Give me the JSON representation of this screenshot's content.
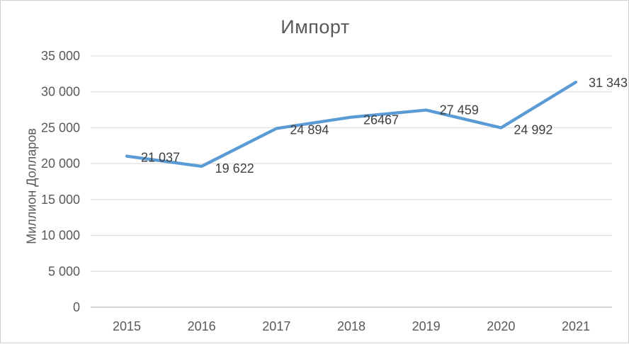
{
  "chart_data": {
    "type": "line",
    "title": "Импорт",
    "xlabel": "",
    "ylabel": "Миллион Долларов",
    "categories": [
      "2015",
      "2016",
      "2017",
      "2018",
      "2019",
      "2020",
      "2021"
    ],
    "series": [
      {
        "name": "Импорт",
        "values": [
          21037,
          19622,
          24894,
          26467,
          27459,
          24992,
          31343
        ],
        "data_labels": [
          "21 037",
          "19 622",
          "24 894",
          "26467",
          "27 459",
          "24 992",
          "31 343"
        ]
      }
    ],
    "ylim": [
      0,
      35000
    ],
    "y_tick_labels": [
      "0",
      "5 000",
      "10 000",
      "15 000",
      "20 000",
      "25 000",
      "30 000",
      "35 000"
    ],
    "y_tick_values": [
      0,
      5000,
      10000,
      15000,
      20000,
      25000,
      30000,
      35000
    ],
    "grid": true,
    "legend_position": "none",
    "colors": {
      "line": "#5B9BD5",
      "gridline": "#D9D9D9",
      "axis_line": "#D3D3D3",
      "tick_text": "#595959",
      "data_label_text": "#3f3f3f",
      "title_text": "#595959",
      "chart_border": "#cfcfcf",
      "background": "#ffffff"
    }
  }
}
